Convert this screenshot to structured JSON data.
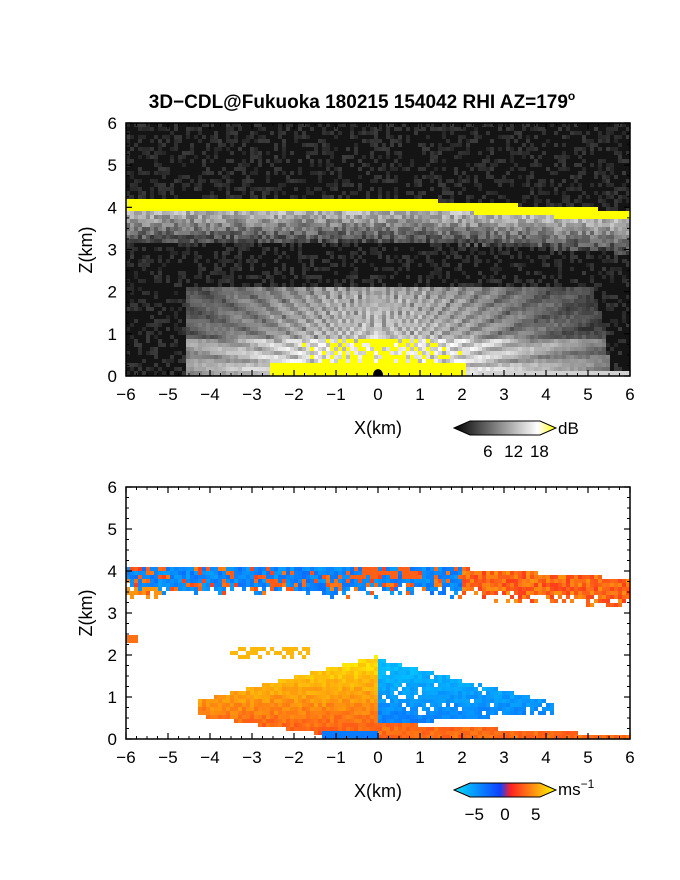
{
  "title": "3D−CDL@Fukuoka 180215 154042 RHI AZ=179",
  "title_degree": "o",
  "chart_data": [
    {
      "type": "heatmap",
      "panel": "reflectivity",
      "xlabel": "X(km)",
      "ylabel": "Z(km)",
      "xlim": [
        -6,
        6
      ],
      "ylim": [
        0,
        6
      ],
      "x_ticks": [
        "−6",
        "−5",
        "−4",
        "−3",
        "−2",
        "−1",
        "0",
        "1",
        "2",
        "3",
        "4",
        "5",
        "6"
      ],
      "y_ticks": [
        "0",
        "1",
        "2",
        "3",
        "4",
        "5",
        "6"
      ],
      "background_color": "#141414",
      "colorbar": {
        "unit": "dB",
        "ticks": [
          "6",
          "12",
          "18"
        ],
        "min": 0,
        "max": 20,
        "colors": [
          "#000000",
          "#ffffff",
          "#ffff00"
        ]
      },
      "features": [
        {
          "name": "cloud top band",
          "x": [
            -6,
            6
          ],
          "z_top": [
            4.05,
            3.8
          ],
          "value": 20
        },
        {
          "name": "sub-layer echoes",
          "x": [
            -5.8,
            5.8
          ],
          "z": [
            2.9,
            3.7
          ],
          "value": 10
        },
        {
          "name": "near-surface fan",
          "x": [
            -4.5,
            5.8
          ],
          "z": [
            0,
            2.1
          ],
          "value": 14
        },
        {
          "name": "surface strong echo",
          "x": [
            -2.5,
            2
          ],
          "z": [
            0,
            0.35
          ],
          "value": 20
        }
      ]
    },
    {
      "type": "heatmap",
      "panel": "doppler velocity",
      "xlabel": "X(km)",
      "ylabel": "Z(km)",
      "xlim": [
        -6,
        6
      ],
      "ylim": [
        0,
        6
      ],
      "x_ticks": [
        "−6",
        "−5",
        "−4",
        "−3",
        "−2",
        "−1",
        "0",
        "1",
        "2",
        "3",
        "4",
        "5",
        "6"
      ],
      "y_ticks": [
        "0",
        "1",
        "2",
        "3",
        "4",
        "5",
        "6"
      ],
      "background_color": "#ffffff",
      "colorbar": {
        "unit": "ms",
        "unit_exp": "−1",
        "ticks": [
          "−5",
          "0",
          "5"
        ],
        "min": -7,
        "max": 7,
        "colors": [
          "#00e0ff",
          "#1040ff",
          "#ff2020",
          "#ffff00"
        ]
      },
      "features": [
        {
          "name": "upper layer",
          "x": [
            -6,
            6
          ],
          "z": [
            3.3,
            4.15
          ],
          "value_range": [
            -3,
            3
          ]
        },
        {
          "name": "lower layer left",
          "x": [
            -4.2,
            0
          ],
          "z": [
            0,
            2
          ],
          "value_range": [
            1,
            5
          ]
        },
        {
          "name": "lower layer right",
          "x": [
            0,
            4
          ],
          "z": [
            0.3,
            2
          ],
          "value_range": [
            -5,
            -1
          ]
        },
        {
          "name": "surface right",
          "x": [
            0,
            6
          ],
          "z": [
            0,
            0.35
          ],
          "value": 3
        }
      ]
    }
  ]
}
